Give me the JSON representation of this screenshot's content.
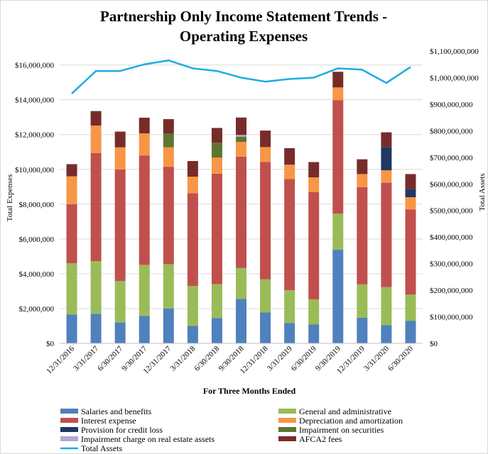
{
  "chart_data": {
    "type": "bar",
    "title_line1": "Partnership Only Income Statement Trends -",
    "title_line2": "Operating Expenses",
    "xlabel": "For Three Months Ended",
    "ylabel": "Total Expenses",
    "y2label": "Total Assets",
    "ylim": [
      0,
      16800000
    ],
    "y2lim": [
      0,
      1100000000
    ],
    "grid": true,
    "legend_position": "bottom",
    "categories": [
      "12/31/2016",
      "3/31/2017",
      "6/30/2017",
      "9/30/2017",
      "12/31/2017",
      "3/31/2018",
      "6/30/2018",
      "9/30/2018",
      "12/31/2018",
      "3/31/2019",
      "6/30/2019",
      "9/30/2019",
      "12/31/2019",
      "3/31/2020",
      "6/30/2020"
    ],
    "y_ticks": [
      "$0",
      "$2,000,000",
      "$4,000,000",
      "$6,000,000",
      "$8,000,000",
      "$10,000,000",
      "$12,000,000",
      "$14,000,000",
      "$16,000,000"
    ],
    "y_tick_values": [
      0,
      2000000,
      4000000,
      6000000,
      8000000,
      10000000,
      12000000,
      14000000,
      16000000
    ],
    "y2_ticks": [
      "$0",
      "$100,000,000",
      "$200,000,000",
      "$300,000,000",
      "$400,000,000",
      "$500,000,000",
      "$600,000,000",
      "$700,000,000",
      "$800,000,000",
      "$900,000,000",
      "$1,000,000,000",
      "$1,100,000,000"
    ],
    "y2_tick_values": [
      0,
      100000000,
      200000000,
      300000000,
      400000000,
      500000000,
      600000000,
      700000000,
      800000000,
      900000000,
      1000000000,
      1100000000
    ],
    "series": [
      {
        "name": "Salaries and benefits",
        "color": "#4f81bd",
        "values": [
          1650000,
          1700000,
          1200000,
          1580000,
          2000000,
          1000000,
          1450000,
          2550000,
          1780000,
          1170000,
          1080000,
          5380000,
          1470000,
          1050000,
          1300000
        ]
      },
      {
        "name": "General and administrative",
        "color": "#9bbb59",
        "values": [
          2950000,
          3020000,
          2380000,
          2930000,
          2550000,
          2300000,
          1950000,
          1780000,
          1900000,
          1880000,
          1450000,
          2070000,
          1920000,
          2180000,
          1500000
        ]
      },
      {
        "name": "Interest expense",
        "color": "#c0504d",
        "values": [
          3400000,
          6220000,
          6410000,
          6290000,
          5600000,
          5330000,
          6350000,
          6400000,
          6750000,
          6400000,
          6170000,
          6530000,
          5590000,
          6000000,
          4900000
        ]
      },
      {
        "name": "Depreciation and amortization",
        "color": "#f79646",
        "values": [
          1600000,
          1580000,
          1280000,
          1270000,
          1120000,
          950000,
          930000,
          850000,
          850000,
          820000,
          840000,
          730000,
          750000,
          720000,
          700000
        ]
      },
      {
        "name": "Provision for credit loss",
        "color": "#1f3864",
        "values": [
          0,
          0,
          0,
          0,
          0,
          0,
          0,
          0,
          0,
          0,
          0,
          0,
          0,
          1330000,
          480000
        ]
      },
      {
        "name": "Impairment on securities",
        "color": "#5f7530",
        "values": [
          0,
          0,
          0,
          0,
          800000,
          0,
          850000,
          300000,
          0,
          0,
          0,
          0,
          0,
          0,
          0
        ]
      },
      {
        "name": "Impairment charge on real estate assets",
        "color": "#b4a7d6",
        "values": [
          0,
          0,
          0,
          0,
          0,
          0,
          0,
          100000,
          0,
          0,
          0,
          0,
          0,
          0,
          0
        ]
      },
      {
        "name": "AFCA2 fees",
        "color": "#772c2a",
        "values": [
          700000,
          830000,
          900000,
          900000,
          820000,
          900000,
          850000,
          1000000,
          950000,
          950000,
          880000,
          900000,
          850000,
          850000,
          850000
        ]
      }
    ],
    "line_series": {
      "name": "Total Assets",
      "color": "#1cace4",
      "values": [
        940000000,
        1025000000,
        1025000000,
        1050000000,
        1065000000,
        1035000000,
        1025000000,
        1000000000,
        985000000,
        995000000,
        1000000000,
        1035000000,
        1030000000,
        980000000,
        1040000000
      ]
    }
  }
}
